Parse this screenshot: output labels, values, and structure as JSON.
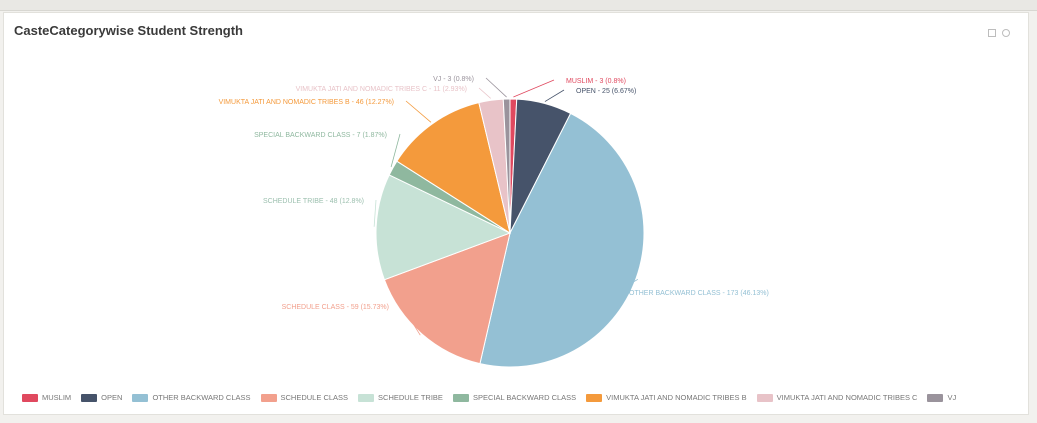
{
  "title": "CasteCategorywise Student Strength",
  "chart_data": {
    "type": "pie",
    "slices": [
      {
        "name": "MUSLIM",
        "value": 3,
        "label": "MUSLIM - 3 (0.8%)",
        "color": "#e0495f"
      },
      {
        "name": "OPEN",
        "value": 25,
        "label": "OPEN - 25 (6.67%)",
        "color": "#46536a"
      },
      {
        "name": "OTHER BACKWARD CLASS",
        "value": 173,
        "label": "OTHER BACKWARD CLASS - 173 (46.13%)",
        "color": "#94c0d4"
      },
      {
        "name": "SCHEDULE CLASS",
        "value": 59,
        "label": "SCHEDULE CLASS - 59 (15.73%)",
        "color": "#f2a08d"
      },
      {
        "name": "SCHEDULE TRIBE",
        "value": 48,
        "label": "SCHEDULE TRIBE - 48 (12.8%)",
        "color": "#c7e2d6"
      },
      {
        "name": "SPECIAL BACKWARD CLASS",
        "value": 7,
        "label": "SPECIAL BACKWARD CLASS - 7 (1.87%)",
        "color": "#8fb89f"
      },
      {
        "name": "VIMUKTA JATI AND NOMADIC TRIBES B",
        "value": 46,
        "label": "VIMUKTA JATI AND NOMADIC TRIBES B - 46 (12.27%)",
        "color": "#f49a3c"
      },
      {
        "name": "VIMUKTA JATI AND NOMADIC TRIBES C",
        "value": 11,
        "label": "VIMUKTA JATI AND NOMADIC TRIBES C - 11 (2.93%)",
        "color": "#e8c3c8"
      },
      {
        "name": "VJ",
        "value": 3,
        "label": "VJ - 3 (0.8%)",
        "color": "#9a939c"
      }
    ],
    "legend_position": "bottom"
  }
}
